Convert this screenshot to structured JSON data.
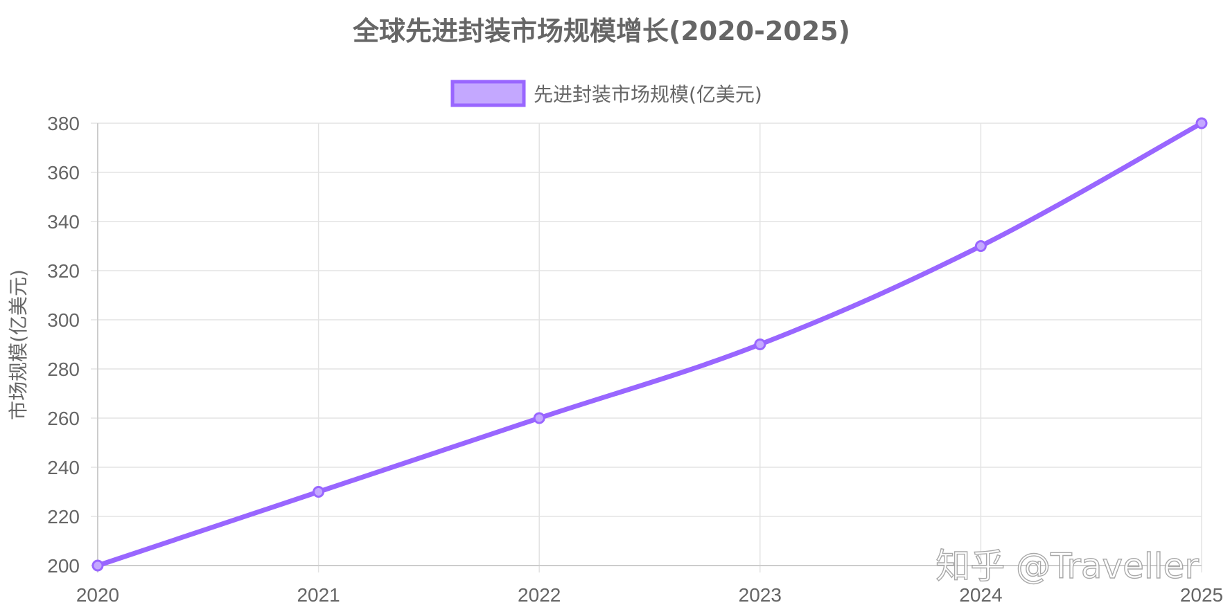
{
  "chart_data": {
    "type": "line",
    "title": "全球先进封装市场规模增长(2020-2025)",
    "categories": [
      "2020",
      "2021",
      "2022",
      "2023",
      "2024",
      "2025"
    ],
    "series": [
      {
        "name": "先进封装市场规模(亿美元)",
        "values": [
          200,
          230,
          260,
          290,
          330,
          380
        ],
        "color": "#9966ff",
        "fill_color": "#c4a8ff"
      }
    ],
    "xlabel": "",
    "ylabel": "市场规模(亿美元)",
    "ylim": [
      200,
      380
    ],
    "yticks": [
      200,
      220,
      240,
      260,
      280,
      300,
      320,
      340,
      360,
      380
    ],
    "grid": true,
    "legend_position": "top-center",
    "curve": "smooth"
  },
  "watermark": {
    "text": "知乎 @Traveller"
  }
}
